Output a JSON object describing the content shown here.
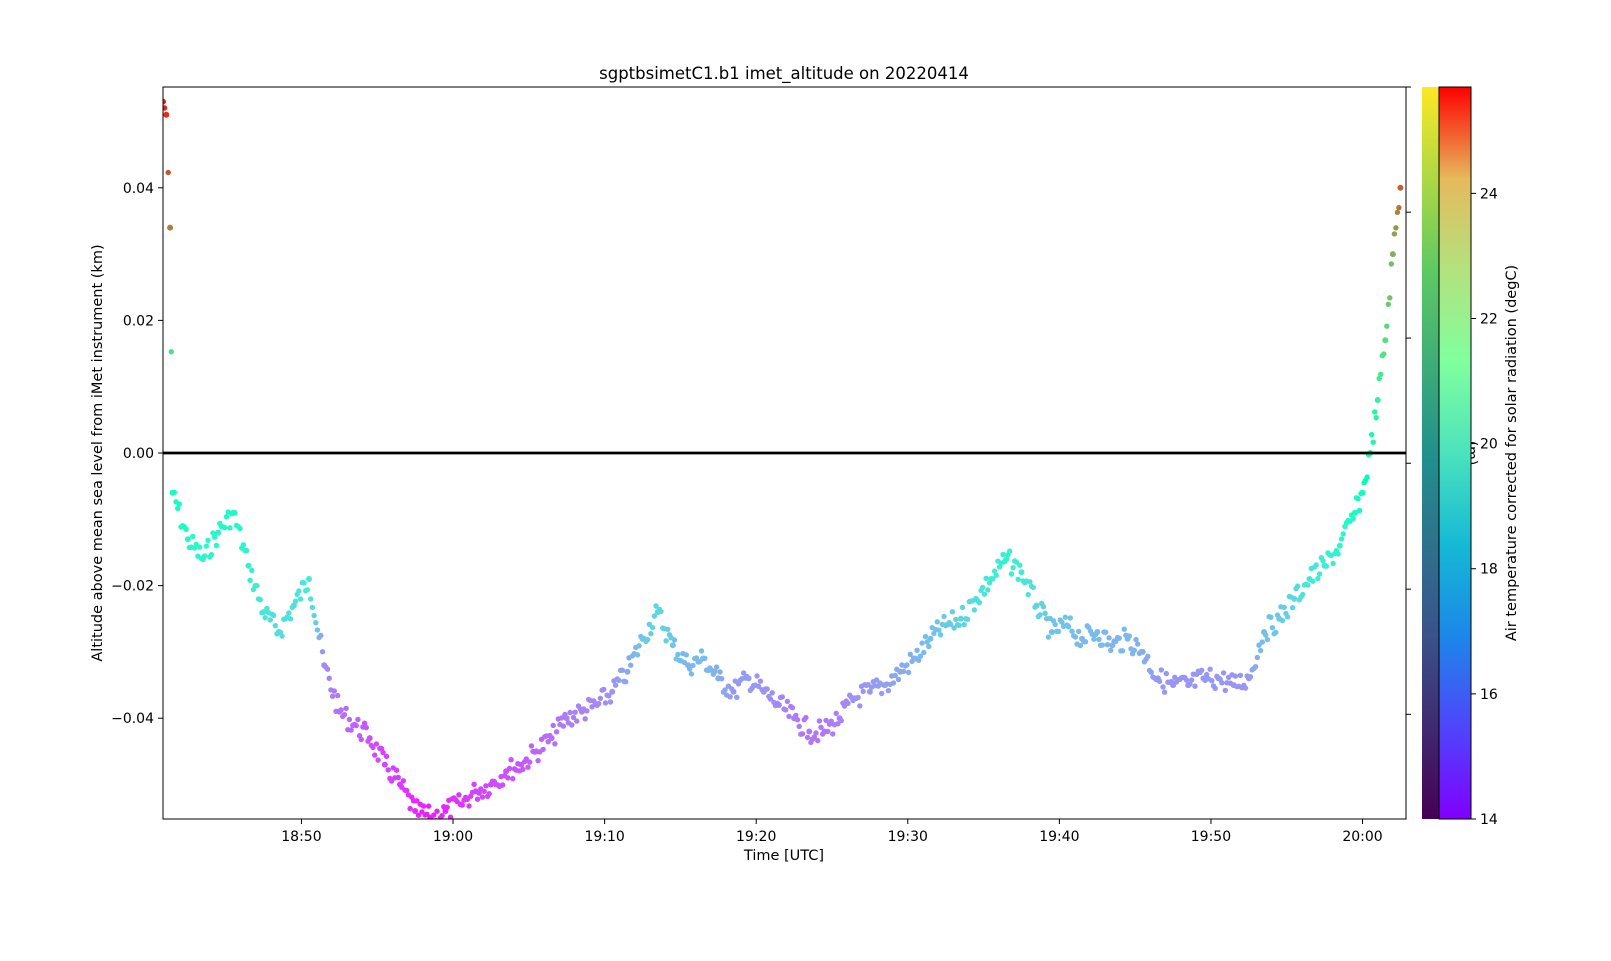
{
  "chart_data": {
    "type": "scatter",
    "title": "sgptbsimetC1.b1 imet_altitude on 20220414",
    "xlabel": "Time [UTC]",
    "ylabel": "Altitude above mean sea level from iMet instrument (km)",
    "xlim": [
      "18:40:52",
      "20:02:52"
    ],
    "ylim": [
      -0.0552,
      0.0552
    ],
    "x_ticks": [
      "18:50",
      "19:00",
      "19:10",
      "19:20",
      "19:30",
      "19:40",
      "19:50",
      "20:00"
    ],
    "y_ticks": [
      -0.04,
      -0.02,
      0.0,
      0.02,
      0.04
    ],
    "y_tick_labels": [
      "−0.04",
      "−0.02",
      "0.00",
      "0.02",
      "0.04"
    ],
    "reference_line": {
      "y": 0.0,
      "color": "#000000"
    },
    "grid": false,
    "colorbar": {
      "label": "Air temperature corrected for solar radiation (degC)",
      "range": [
        14.0,
        25.7
      ],
      "ticks": [
        14,
        16,
        18,
        20,
        22,
        24
      ],
      "colormap": "rainbow",
      "placement": "right"
    },
    "secondary_colorbar": {
      "label_fragment": "(m)",
      "colors": [
        "#440154",
        "#3b528b",
        "#21918c",
        "#5ec962",
        "#fde725"
      ]
    },
    "series": [
      {
        "x": [
          "18:40:52",
          "18:41:05",
          "18:41:20",
          "18:41:30",
          "18:42:30",
          "18:43:30",
          "18:44:30",
          "18:45:30",
          "18:46:30",
          "18:47:30",
          "18:48:30",
          "18:49:30",
          "18:50:30",
          "18:51:30",
          "18:52:30",
          "18:53:30",
          "18:54:30",
          "18:55:30",
          "18:56:30",
          "18:57:30",
          "18:58:30",
          "18:59:30",
          "19:00:30",
          "19:01:30",
          "19:02:30",
          "19:03:30",
          "19:04:30",
          "19:05:30",
          "19:06:30",
          "19:07:30",
          "19:08:30",
          "19:09:30",
          "19:10:30",
          "19:11:30",
          "19:12:30",
          "19:13:30",
          "19:14:30",
          "19:15:30",
          "19:16:30",
          "19:17:30",
          "19:18:30",
          "19:19:30",
          "19:20:30",
          "19:21:30",
          "19:22:30",
          "19:23:30",
          "19:24:30",
          "19:25:30",
          "19:26:30",
          "19:27:30",
          "19:28:30",
          "19:29:30",
          "19:30:30",
          "19:31:30",
          "19:32:30",
          "19:33:30",
          "19:34:30",
          "19:35:30",
          "19:36:30",
          "19:37:30",
          "19:38:30",
          "19:39:30",
          "19:40:30",
          "19:41:30",
          "19:42:30",
          "19:43:30",
          "19:44:30",
          "19:45:30",
          "19:46:30",
          "19:47:30",
          "19:48:30",
          "19:49:30",
          "19:50:30",
          "19:51:30",
          "19:52:30",
          "19:53:30",
          "19:54:30",
          "19:55:30",
          "19:56:30",
          "19:57:30",
          "19:58:30",
          "19:59:30",
          "20:00:00",
          "20:00:30",
          "20:01:00",
          "20:01:30",
          "20:02:00",
          "20:02:30"
        ],
        "y": [
          0.053,
          0.051,
          0.034,
          -0.006,
          -0.013,
          -0.016,
          -0.012,
          -0.009,
          -0.017,
          -0.024,
          -0.027,
          -0.023,
          -0.019,
          -0.032,
          -0.039,
          -0.041,
          -0.043,
          -0.047,
          -0.05,
          -0.054,
          -0.055,
          -0.054,
          -0.053,
          -0.051,
          -0.05,
          -0.048,
          -0.047,
          -0.045,
          -0.043,
          -0.04,
          -0.039,
          -0.038,
          -0.036,
          -0.033,
          -0.028,
          -0.024,
          -0.029,
          -0.032,
          -0.031,
          -0.034,
          -0.036,
          -0.034,
          -0.036,
          -0.038,
          -0.04,
          -0.042,
          -0.042,
          -0.04,
          -0.037,
          -0.036,
          -0.035,
          -0.033,
          -0.031,
          -0.028,
          -0.026,
          -0.025,
          -0.022,
          -0.019,
          -0.016,
          -0.018,
          -0.023,
          -0.027,
          -0.026,
          -0.028,
          -0.027,
          -0.029,
          -0.028,
          -0.03,
          -0.034,
          -0.035,
          -0.035,
          -0.034,
          -0.034,
          -0.035,
          -0.034,
          -0.027,
          -0.025,
          -0.022,
          -0.019,
          -0.017,
          -0.014,
          -0.009,
          -0.006,
          0.0,
          0.008,
          0.017,
          0.03,
          0.04
        ],
        "temperature_degC": [
          25.3,
          25.0,
          23.8,
          19.5,
          19.0,
          18.8,
          19.0,
          19.2,
          18.6,
          18.1,
          17.9,
          18.0,
          18.4,
          16.2,
          15.7,
          15.5,
          15.2,
          15.0,
          14.9,
          14.6,
          14.4,
          14.6,
          14.8,
          15.0,
          15.1,
          15.2,
          15.3,
          15.5,
          15.7,
          15.9,
          16.0,
          16.1,
          16.3,
          16.7,
          17.3,
          17.8,
          17.3,
          17.0,
          17.1,
          16.8,
          16.4,
          16.5,
          16.3,
          16.1,
          15.9,
          15.8,
          15.8,
          16.0,
          16.3,
          16.4,
          16.5,
          16.7,
          16.9,
          17.2,
          17.4,
          17.6,
          17.9,
          18.3,
          18.7,
          18.4,
          17.7,
          17.2,
          17.3,
          17.0,
          17.1,
          16.9,
          17.0,
          16.8,
          16.4,
          16.3,
          16.3,
          16.4,
          16.4,
          16.3,
          16.4,
          17.2,
          17.4,
          17.8,
          18.2,
          18.4,
          18.8,
          19.2,
          19.6,
          20.2,
          21.0,
          21.8,
          22.9,
          24.2
        ]
      }
    ]
  }
}
